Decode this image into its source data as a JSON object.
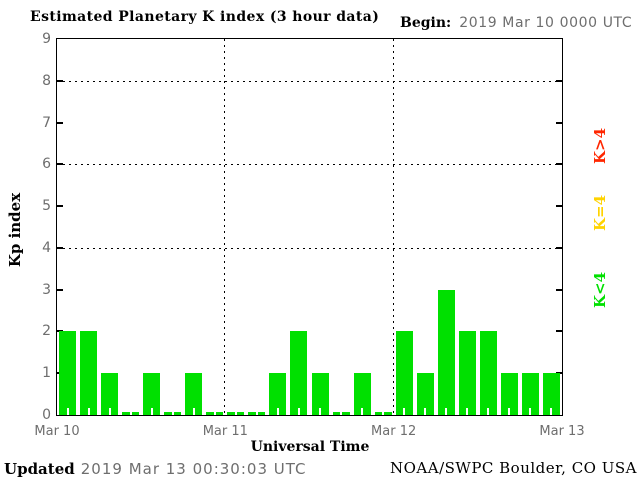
{
  "header": {
    "title": "Estimated Planetary K index (3 hour data)",
    "begin_label": "Begin:",
    "begin_value": "2019 Mar 10 0000 UTC"
  },
  "chart_data": {
    "type": "bar",
    "title": "Estimated Planetary K index (3 hour data)",
    "begin": "2019 Mar 10 0000 UTC",
    "xlabel": "Universal Time",
    "ylabel": "Kp index",
    "ylim": [
      0,
      9
    ],
    "y_ticks": [
      0,
      1,
      2,
      3,
      4,
      5,
      6,
      7,
      8,
      9
    ],
    "grid_y_dotted": [
      4,
      6,
      8
    ],
    "grid": "dotted horizontal lines at Kp 4,6,8; dotted vertical lines at day boundaries",
    "bin_hours": 3,
    "x_tick_labels": [
      "Mar 10",
      "Mar 11",
      "Mar 12",
      "Mar 13"
    ],
    "series": [
      {
        "name": "Mar 10",
        "values": [
          2,
          2,
          1,
          0,
          1,
          0,
          1,
          0
        ]
      },
      {
        "name": "Mar 11",
        "values": [
          0,
          0,
          1,
          2,
          1,
          0,
          1,
          0
        ]
      },
      {
        "name": "Mar 12",
        "values": [
          2,
          1,
          3,
          2,
          2,
          1,
          1,
          1
        ]
      }
    ],
    "bar_color": "#00e000",
    "bar_color_rule": "green when K<4, yellow when K=4, red when K>4",
    "legend_position": "right, rotated 90deg",
    "legend": [
      {
        "label": "K>4",
        "color": "#ff2600"
      },
      {
        "label": "K=4",
        "color": "#ffd300"
      },
      {
        "label": "K<4",
        "color": "#00e000"
      }
    ]
  },
  "footer": {
    "updated_label": "Updated",
    "updated_value": "2019 Mar 13 00:30:03 UTC",
    "source": "NOAA/SWPC Boulder, CO USA"
  },
  "colors": {
    "background": "#ffffff",
    "bar_green": "#00e000",
    "legend_yellow": "#ffd300",
    "legend_red": "#ff2600",
    "text_gray": "#6e6e6e",
    "axis_black": "#000000"
  }
}
